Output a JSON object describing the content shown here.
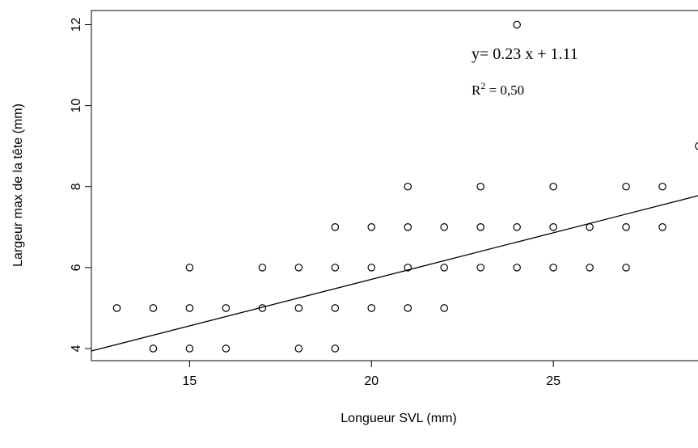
{
  "chart_data": {
    "type": "scatter",
    "title": "",
    "xlabel": "Longueur SVL (mm)",
    "ylabel": "Largeur max de la tête (mm)",
    "xlim": [
      12.3,
      29.2
    ],
    "ylim": [
      3.7,
      12.35
    ],
    "x_ticks": [
      15,
      20,
      25
    ],
    "y_ticks": [
      4,
      6,
      8,
      10,
      12
    ],
    "grid": false,
    "points": [
      {
        "x": 13,
        "y": 5
      },
      {
        "x": 14,
        "y": 5
      },
      {
        "x": 14,
        "y": 4
      },
      {
        "x": 15,
        "y": 6
      },
      {
        "x": 15,
        "y": 5
      },
      {
        "x": 15,
        "y": 4
      },
      {
        "x": 16,
        "y": 5
      },
      {
        "x": 16,
        "y": 4
      },
      {
        "x": 17,
        "y": 6
      },
      {
        "x": 17,
        "y": 5
      },
      {
        "x": 18,
        "y": 6
      },
      {
        "x": 18,
        "y": 5
      },
      {
        "x": 18,
        "y": 4
      },
      {
        "x": 19,
        "y": 7
      },
      {
        "x": 19,
        "y": 6
      },
      {
        "x": 19,
        "y": 5
      },
      {
        "x": 19,
        "y": 4
      },
      {
        "x": 20,
        "y": 7
      },
      {
        "x": 20,
        "y": 6
      },
      {
        "x": 20,
        "y": 5
      },
      {
        "x": 21,
        "y": 8
      },
      {
        "x": 21,
        "y": 7
      },
      {
        "x": 21,
        "y": 6
      },
      {
        "x": 21,
        "y": 5
      },
      {
        "x": 22,
        "y": 7
      },
      {
        "x": 22,
        "y": 6
      },
      {
        "x": 22,
        "y": 5
      },
      {
        "x": 23,
        "y": 8
      },
      {
        "x": 23,
        "y": 7
      },
      {
        "x": 23,
        "y": 6
      },
      {
        "x": 24,
        "y": 12
      },
      {
        "x": 24,
        "y": 7
      },
      {
        "x": 24,
        "y": 6
      },
      {
        "x": 25,
        "y": 8
      },
      {
        "x": 25,
        "y": 7
      },
      {
        "x": 25,
        "y": 6
      },
      {
        "x": 26,
        "y": 7
      },
      {
        "x": 26,
        "y": 6
      },
      {
        "x": 27,
        "y": 8
      },
      {
        "x": 27,
        "y": 7
      },
      {
        "x": 27,
        "y": 6
      },
      {
        "x": 28,
        "y": 8
      },
      {
        "x": 28,
        "y": 7
      },
      {
        "x": 29,
        "y": 9
      }
    ],
    "regression": {
      "slope": 0.23,
      "intercept": 1.11
    },
    "annotations": {
      "equation": "y= 0.23 x + 1.11",
      "r2_label": "R",
      "r2_sup": "2",
      "r2_value": " = 0,50"
    }
  }
}
